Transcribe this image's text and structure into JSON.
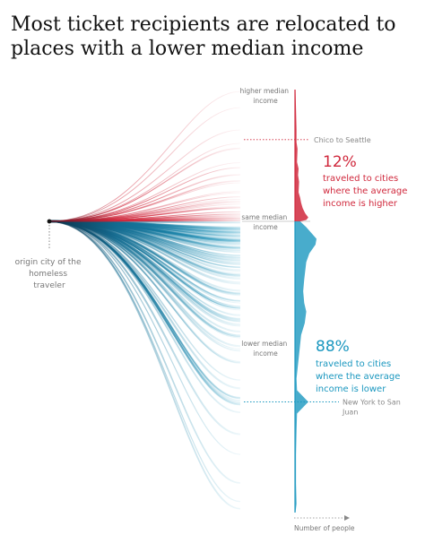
{
  "title_lines": [
    "Most ticket recipients are relocated to",
    "places with a lower median income"
  ],
  "colors": {
    "higher": "#d0283c",
    "lower": "#1a97bf",
    "dark": "#0c2f47",
    "label": "#777777"
  },
  "chart_data": {
    "type": "area",
    "subtype": "flow-lines-with-density-distribution",
    "origin_label_lines": [
      "origin city of the",
      "homeless",
      "traveler"
    ],
    "y_axis_labels": {
      "higher": [
        "higher median",
        "income"
      ],
      "same": [
        "same median",
        "income"
      ],
      "lower": [
        "lower median",
        "income"
      ]
    },
    "x_axis_label": "Number of people",
    "groups": [
      {
        "name": "higher",
        "percent": "12%",
        "description_lines": [
          "traveled to cities",
          "where the average",
          "income is higher"
        ]
      },
      {
        "name": "lower",
        "percent": "88%",
        "description_lines": [
          "traveled to cities",
          "where the average",
          "income is lower"
        ]
      }
    ],
    "annotations": [
      {
        "label_lines": [
          "Chico to Seattle"
        ],
        "level": 0.62
      },
      {
        "label_lines": [
          "New York to San",
          "Juan"
        ],
        "level": -0.62
      }
    ],
    "distribution": [
      {
        "level": 1.0,
        "count": 1
      },
      {
        "level": 0.85,
        "count": 2
      },
      {
        "level": 0.7,
        "count": 3
      },
      {
        "level": 0.6,
        "count": 3
      },
      {
        "level": 0.55,
        "count": 5
      },
      {
        "level": 0.45,
        "count": 4
      },
      {
        "level": 0.4,
        "count": 7
      },
      {
        "level": 0.35,
        "count": 6
      },
      {
        "level": 0.3,
        "count": 8
      },
      {
        "level": 0.22,
        "count": 7
      },
      {
        "level": 0.18,
        "count": 10
      },
      {
        "level": 0.14,
        "count": 12
      },
      {
        "level": 0.1,
        "count": 15
      },
      {
        "level": 0.06,
        "count": 20
      },
      {
        "level": 0.03,
        "count": 26
      },
      {
        "level": 0.01,
        "count": 22
      },
      {
        "level": 0.0,
        "count": 10
      },
      {
        "level": -0.02,
        "count": 22
      },
      {
        "level": -0.04,
        "count": 32
      },
      {
        "level": -0.06,
        "count": 42
      },
      {
        "level": -0.08,
        "count": 40
      },
      {
        "level": -0.11,
        "count": 28
      },
      {
        "level": -0.14,
        "count": 22
      },
      {
        "level": -0.17,
        "count": 20
      },
      {
        "level": -0.2,
        "count": 18
      },
      {
        "level": -0.24,
        "count": 16
      },
      {
        "level": -0.28,
        "count": 18
      },
      {
        "level": -0.31,
        "count": 22
      },
      {
        "level": -0.35,
        "count": 19
      },
      {
        "level": -0.39,
        "count": 12
      },
      {
        "level": -0.44,
        "count": 9
      },
      {
        "level": -0.49,
        "count": 6
      },
      {
        "level": -0.54,
        "count": 3
      },
      {
        "level": -0.58,
        "count": 4
      },
      {
        "level": -0.62,
        "count": 26
      },
      {
        "level": -0.66,
        "count": 4
      },
      {
        "level": -0.72,
        "count": 3
      },
      {
        "level": -0.8,
        "count": 2
      },
      {
        "level": -0.9,
        "count": 2
      },
      {
        "level": -0.97,
        "count": 3
      },
      {
        "level": -1.0,
        "count": 1
      }
    ]
  }
}
